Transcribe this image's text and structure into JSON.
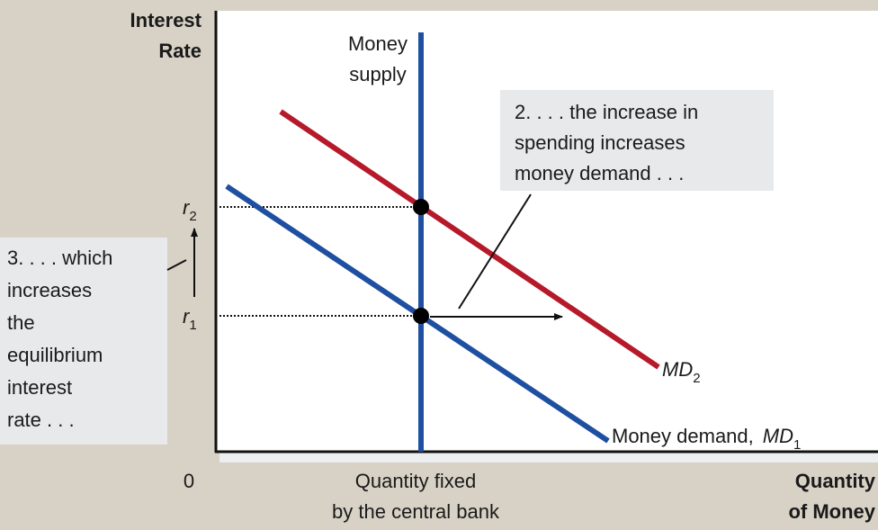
{
  "y_axis_label": [
    "Interest",
    "Rate"
  ],
  "x_axis_label": [
    "Quantity",
    "of Money"
  ],
  "origin_label": "0",
  "money_supply_label": [
    "Money",
    "supply"
  ],
  "fixed_quantity_label": [
    "Quantity fixed",
    "by the central bank"
  ],
  "r2": {
    "letter": "r",
    "sub": "2"
  },
  "r1": {
    "letter": "r",
    "sub": "1"
  },
  "md2": {
    "letter": "MD",
    "sub": "2"
  },
  "md1": {
    "prefix": "Money demand,",
    "letter": "MD",
    "sub": "1"
  },
  "annotation_2": [
    "2. . . . the increase in",
    "spending increases",
    "money demand . . ."
  ],
  "annotation_3": [
    "3. . . . which",
    "increases",
    "the",
    "equilibrium",
    "interest",
    "rate . . ."
  ]
}
